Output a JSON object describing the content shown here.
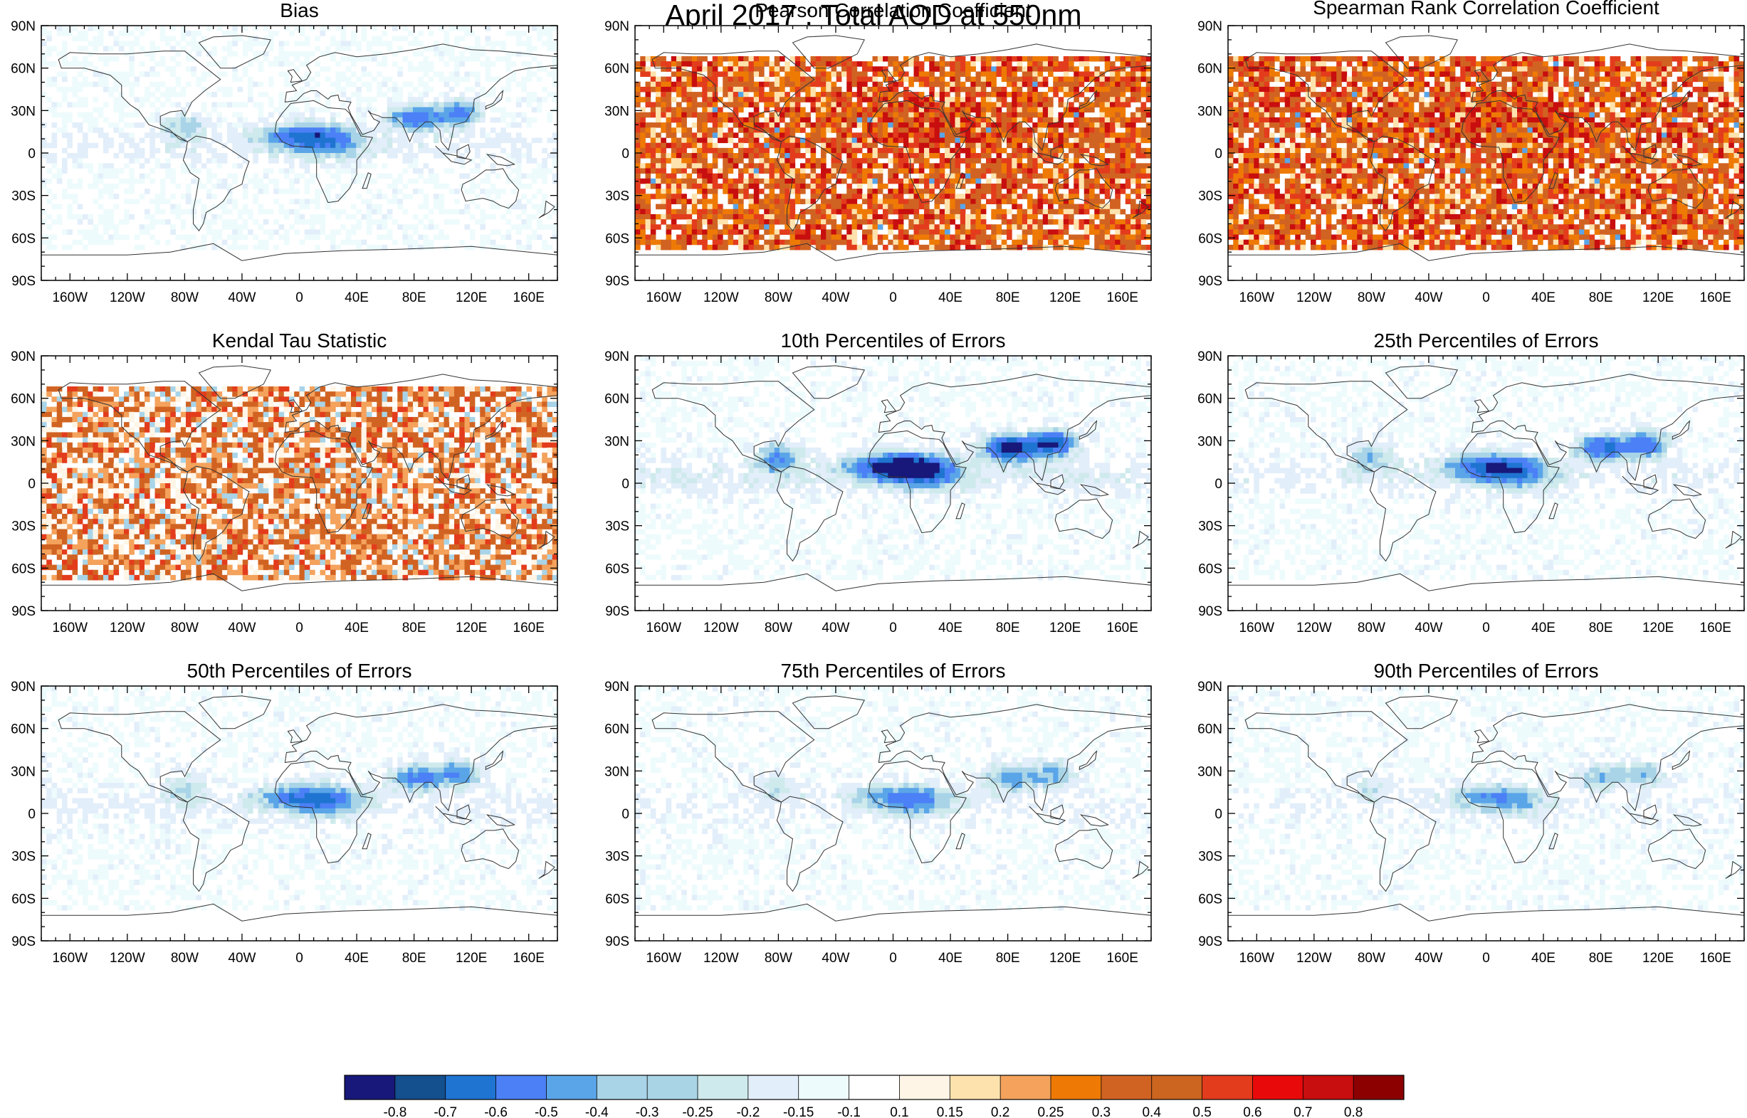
{
  "figure": {
    "title": "April 2017 : Total AOD at 550nm"
  },
  "chart_data": [
    {
      "type": "heatmap",
      "title": "Bias",
      "panel_row": 1,
      "panel_col": 1,
      "pattern": "error",
      "xlabel": "",
      "ylabel": "",
      "xlim": [
        -180,
        180
      ],
      "ylim": [
        -90,
        90
      ],
      "xticks": [
        "160W",
        "120W",
        "80W",
        "40W",
        "0",
        "40E",
        "80E",
        "120E",
        "160E"
      ],
      "yticks": [
        "90N",
        "60N",
        "30N",
        "0",
        "30S",
        "60S",
        "90S"
      ]
    },
    {
      "type": "heatmap",
      "title": "Pearson Correlation Coefficient",
      "panel_row": 1,
      "panel_col": 2,
      "pattern": "correlation",
      "xlabel": "",
      "ylabel": "",
      "xlim": [
        -180,
        180
      ],
      "ylim": [
        -90,
        90
      ],
      "xticks": [
        "160W",
        "120W",
        "80W",
        "40W",
        "0",
        "40E",
        "80E",
        "120E",
        "160E"
      ],
      "yticks": [
        "90N",
        "60N",
        "30N",
        "0",
        "30S",
        "60S",
        "90S"
      ]
    },
    {
      "type": "heatmap",
      "title": "Spearman Rank Correlation Coefficient",
      "panel_row": 1,
      "panel_col": 3,
      "pattern": "correlation",
      "xlabel": "",
      "ylabel": "",
      "xlim": [
        -180,
        180
      ],
      "ylim": [
        -90,
        90
      ],
      "xticks": [
        "160W",
        "120W",
        "80W",
        "40W",
        "0",
        "40E",
        "80E",
        "120E",
        "160E"
      ],
      "yticks": [
        "90N",
        "60N",
        "30N",
        "0",
        "30S",
        "60S",
        "90S"
      ]
    },
    {
      "type": "heatmap",
      "title": "Kendal Tau Statistic",
      "panel_row": 2,
      "panel_col": 1,
      "pattern": "tau",
      "xlabel": "",
      "ylabel": "",
      "xlim": [
        -180,
        180
      ],
      "ylim": [
        -90,
        90
      ],
      "xticks": [
        "160W",
        "120W",
        "80W",
        "40W",
        "0",
        "40E",
        "80E",
        "120E",
        "160E"
      ],
      "yticks": [
        "90N",
        "60N",
        "30N",
        "0",
        "30S",
        "60S",
        "90S"
      ]
    },
    {
      "type": "heatmap",
      "title": "10th Percentiles of Errors",
      "panel_row": 2,
      "panel_col": 2,
      "pattern": "p10",
      "xlabel": "",
      "ylabel": "",
      "xlim": [
        -180,
        180
      ],
      "ylim": [
        -90,
        90
      ],
      "xticks": [
        "160W",
        "120W",
        "80W",
        "40W",
        "0",
        "40E",
        "80E",
        "120E",
        "160E"
      ],
      "yticks": [
        "90N",
        "60N",
        "30N",
        "0",
        "30S",
        "60S",
        "90S"
      ]
    },
    {
      "type": "heatmap",
      "title": "25th Percentiles of Errors",
      "panel_row": 2,
      "panel_col": 3,
      "pattern": "p25",
      "xlabel": "",
      "ylabel": "",
      "xlim": [
        -180,
        180
      ],
      "ylim": [
        -90,
        90
      ],
      "xticks": [
        "160W",
        "120W",
        "80W",
        "40W",
        "0",
        "40E",
        "80E",
        "120E",
        "160E"
      ],
      "yticks": [
        "90N",
        "60N",
        "30N",
        "0",
        "30S",
        "60S",
        "90S"
      ]
    },
    {
      "type": "heatmap",
      "title": "50th Percentiles of Errors",
      "panel_row": 3,
      "panel_col": 1,
      "pattern": "p50",
      "xlabel": "",
      "ylabel": "",
      "xlim": [
        -180,
        180
      ],
      "ylim": [
        -90,
        90
      ],
      "xticks": [
        "160W",
        "120W",
        "80W",
        "40W",
        "0",
        "40E",
        "80E",
        "120E",
        "160E"
      ],
      "yticks": [
        "90N",
        "60N",
        "30N",
        "0",
        "30S",
        "60S",
        "90S"
      ]
    },
    {
      "type": "heatmap",
      "title": "75th Percentiles of Errors",
      "panel_row": 3,
      "panel_col": 2,
      "pattern": "p75",
      "xlabel": "",
      "ylabel": "",
      "xlim": [
        -180,
        180
      ],
      "ylim": [
        -90,
        90
      ],
      "xticks": [
        "160W",
        "120W",
        "80W",
        "40W",
        "0",
        "40E",
        "80E",
        "120E",
        "160E"
      ],
      "yticks": [
        "90N",
        "60N",
        "30N",
        "0",
        "30S",
        "60S",
        "90S"
      ]
    },
    {
      "type": "heatmap",
      "title": "90th Percentiles of Errors",
      "panel_row": 3,
      "panel_col": 3,
      "pattern": "p90",
      "xlabel": "",
      "ylabel": "",
      "xlim": [
        -180,
        180
      ],
      "ylim": [
        -90,
        90
      ],
      "xticks": [
        "160W",
        "120W",
        "80W",
        "40W",
        "0",
        "40E",
        "80E",
        "120E",
        "160E"
      ],
      "yticks": [
        "90N",
        "60N",
        "30N",
        "0",
        "30S",
        "60S",
        "90S"
      ]
    }
  ],
  "colorbar": {
    "labels": [
      "-0.8",
      "-0.7",
      "-0.6",
      "-0.5",
      "-0.4",
      "-0.3",
      "-0.25",
      "-0.2",
      "-0.15",
      "-0.1",
      "0.1",
      "0.15",
      "0.2",
      "0.25",
      "0.3",
      "0.4",
      "0.5",
      "0.6",
      "0.7",
      "0.8"
    ],
    "colors": [
      "#17187a",
      "#144f8e",
      "#1f74d1",
      "#4b80f6",
      "#5aa5e8",
      "#a9d4e8",
      "#a9d4e6",
      "#cfeaec",
      "#e2eefa",
      "#eefbfc",
      "#ffffff",
      "#fef5e6",
      "#fee2ad",
      "#f4a25c",
      "#ee7a05",
      "#d16322",
      "#cc6520",
      "#e33c1c",
      "#e80a0a",
      "#c80e0e",
      "#8c0000"
    ]
  }
}
